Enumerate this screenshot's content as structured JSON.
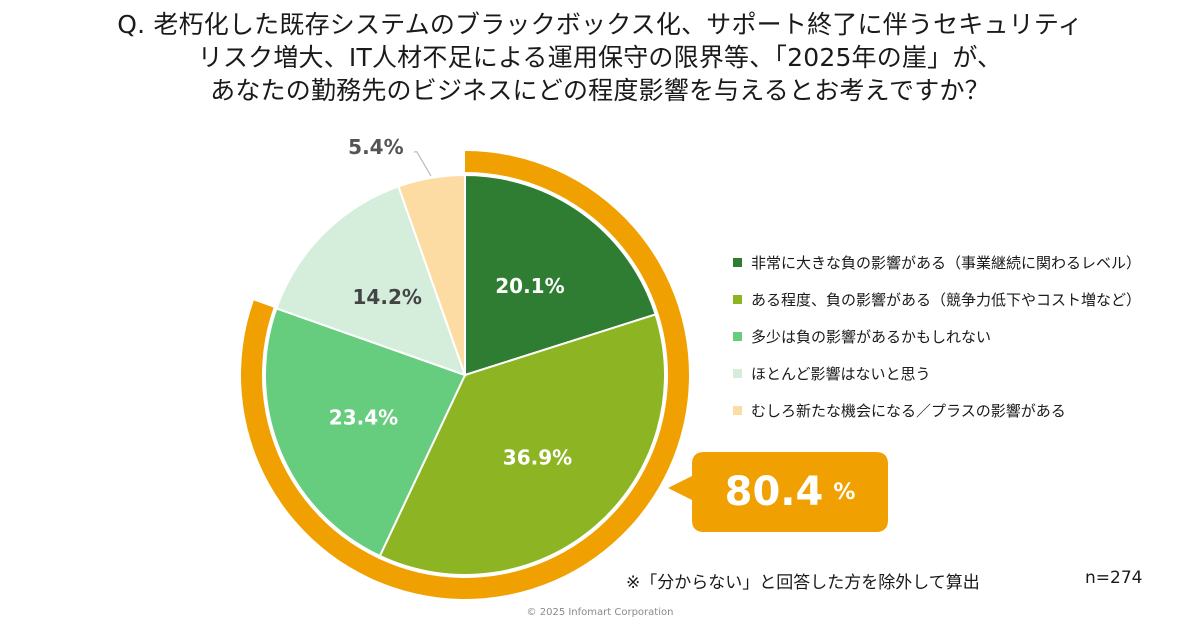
{
  "title_lines": [
    "Q. 老朽化した既存システムのブラックボックス化、サポート終了に伴うセキュリティ",
    "リスク増大、IT人材不足による運用保守の限界等、「2025年の崖」が、",
    "あなたの勤務先のビジネスにどの程度影響を与えるとお考えですか？"
  ],
  "chart_data": {
    "type": "pie",
    "title": "Q. 老朽化した既存システムのブラックボックス化、サポート終了に伴うセキュリティリスク増大、IT人材不足による運用保守の限界等、「2025年の崖」が、あなたの勤務先のビジネスにどの程度影響を与えるとお考えですか？",
    "slices": [
      {
        "label": "非常に大きな負の影響がある（事業継続に関わるレベル）",
        "value": 20.1,
        "display": "20.1%",
        "color": "#2e7d32",
        "text_color": "#ffffff"
      },
      {
        "label": "ある程度、負の影響がある（競争力低下やコスト増など）",
        "value": 36.9,
        "display": "36.9%",
        "color": "#8db523",
        "text_color": "#ffffff"
      },
      {
        "label": "多少は負の影響があるかもしれない",
        "value": 23.4,
        "display": "23.4%",
        "color": "#66cc7e",
        "text_color": "#ffffff"
      },
      {
        "label": "ほとんど影響はないと思う",
        "value": 14.2,
        "display": "14.2%",
        "color": "#d4eedb",
        "text_color": "#444444"
      },
      {
        "label": "むしろ新たな機会になる／プラスの影響がある",
        "value": 5.4,
        "display": "5.4%",
        "color": "#fddca3",
        "text_color": "#555555"
      }
    ],
    "highlight": {
      "value": "80.4",
      "unit": "%",
      "covers": [
        "非常に大きな負の影響がある（事業継続に関わるレベル）",
        "ある程度、負の影響がある（競争力低下やコスト増など）",
        "多少は負の影響があるかもしれない"
      ],
      "color": "#f0a000"
    },
    "legend_position": "right"
  },
  "footnote": "※「分からない」と回答した方を除外して算出",
  "sample_size": "n=274",
  "copyright": "© 2025 Infomart Corporation"
}
